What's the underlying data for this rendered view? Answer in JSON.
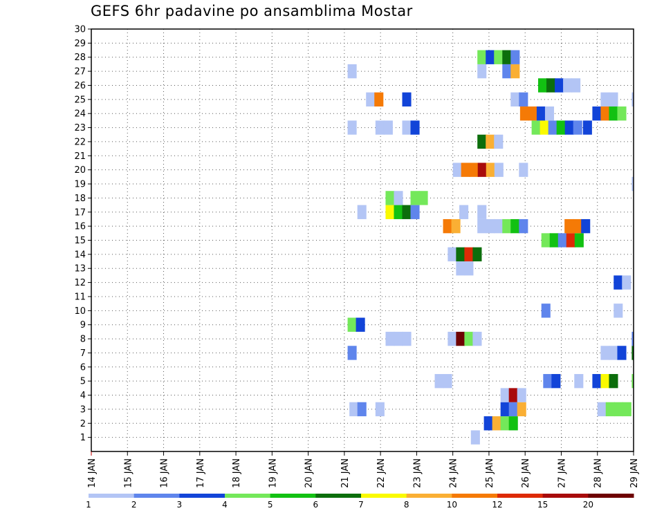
{
  "chart_data": {
    "type": "heatmap",
    "title": "GEFS 6hr padavine po ansamblima Mostar",
    "x_ticks": [
      "14 JAN",
      "15 JAN",
      "16 JAN",
      "17 JAN",
      "18 JAN",
      "19 JAN",
      "20 JAN",
      "21 JAN",
      "22 JAN",
      "23 JAN",
      "24 JAN",
      "25 JAN",
      "26 JAN",
      "27 JAN",
      "28 JAN",
      "29 JAN"
    ],
    "xlim_days": [
      14,
      29
    ],
    "y_ticks": [
      "1",
      "2",
      "3",
      "4",
      "5",
      "6",
      "7",
      "8",
      "9",
      "10",
      "11",
      "12",
      "13",
      "14",
      "15",
      "16",
      "17",
      "18",
      "19",
      "20",
      "21",
      "22",
      "23",
      "24",
      "25",
      "26",
      "27",
      "28",
      "29",
      "30"
    ],
    "ylim": [
      0,
      30
    ],
    "grid": true,
    "colorbar": {
      "labels": [
        "1",
        "2",
        "3",
        "4",
        "5",
        "6",
        "7",
        "8",
        "10",
        "12",
        "15",
        "20"
      ],
      "colors": [
        "#b3c5f5",
        "#5f85ec",
        "#1244d8",
        "#74e85a",
        "#12c112",
        "#0c6e0c",
        "#fafa00",
        "#faaf34",
        "#f57a06",
        "#dd2a06",
        "#a80b0b",
        "#6e0202"
      ]
    },
    "cells": [
      [
        24.5,
        1,
        1
      ],
      [
        24.86,
        2,
        3
      ],
      [
        25.09,
        2,
        8
      ],
      [
        25.32,
        2,
        4
      ],
      [
        25.55,
        2,
        5
      ],
      [
        21.14,
        3,
        1
      ],
      [
        21.36,
        3,
        2
      ],
      [
        21.86,
        3,
        1
      ],
      [
        25.32,
        3,
        3
      ],
      [
        25.55,
        3,
        2
      ],
      [
        25.78,
        3,
        8
      ],
      [
        28.0,
        3,
        1
      ],
      [
        28.23,
        3,
        4
      ],
      [
        28.46,
        3,
        4
      ],
      [
        28.69,
        3,
        4
      ],
      [
        25.32,
        4,
        1
      ],
      [
        25.55,
        4,
        11
      ],
      [
        25.78,
        4,
        1
      ],
      [
        23.5,
        5,
        1
      ],
      [
        23.73,
        5,
        1
      ],
      [
        26.5,
        5,
        2
      ],
      [
        26.73,
        5,
        3
      ],
      [
        27.36,
        5,
        1
      ],
      [
        27.86,
        5,
        3
      ],
      [
        28.09,
        5,
        7
      ],
      [
        28.32,
        5,
        6
      ],
      [
        28.95,
        5,
        4
      ],
      [
        21.09,
        7,
        2
      ],
      [
        28.09,
        7,
        1
      ],
      [
        28.32,
        7,
        1
      ],
      [
        28.55,
        7,
        3
      ],
      [
        28.95,
        7,
        6
      ],
      [
        22.14,
        8,
        1
      ],
      [
        22.37,
        8,
        1
      ],
      [
        22.6,
        8,
        1
      ],
      [
        23.86,
        8,
        1
      ],
      [
        24.09,
        8,
        12
      ],
      [
        24.32,
        8,
        4
      ],
      [
        24.55,
        8,
        1
      ],
      [
        28.95,
        8,
        2
      ],
      [
        21.09,
        9,
        4
      ],
      [
        21.32,
        9,
        3
      ],
      [
        26.45,
        10,
        2
      ],
      [
        28.45,
        10,
        1
      ],
      [
        28.45,
        12,
        3
      ],
      [
        28.68,
        12,
        1
      ],
      [
        24.09,
        13,
        1
      ],
      [
        24.32,
        13,
        1
      ],
      [
        23.86,
        14,
        1
      ],
      [
        24.09,
        14,
        6
      ],
      [
        24.32,
        14,
        10
      ],
      [
        24.55,
        14,
        6
      ],
      [
        26.45,
        15,
        4
      ],
      [
        26.68,
        15,
        5
      ],
      [
        26.91,
        15,
        2
      ],
      [
        27.14,
        15,
        10
      ],
      [
        27.37,
        15,
        5
      ],
      [
        23.73,
        16,
        9
      ],
      [
        23.96,
        16,
        8
      ],
      [
        24.68,
        16,
        1
      ],
      [
        24.91,
        16,
        1
      ],
      [
        25.14,
        16,
        1
      ],
      [
        25.37,
        16,
        4
      ],
      [
        25.6,
        16,
        5
      ],
      [
        25.83,
        16,
        2
      ],
      [
        27.09,
        16,
        9
      ],
      [
        27.32,
        16,
        9
      ],
      [
        27.55,
        16,
        3
      ],
      [
        21.36,
        17,
        1
      ],
      [
        22.14,
        17,
        7
      ],
      [
        22.37,
        17,
        5
      ],
      [
        22.6,
        17,
        6
      ],
      [
        22.83,
        17,
        2
      ],
      [
        24.18,
        17,
        1
      ],
      [
        24.68,
        17,
        1
      ],
      [
        22.14,
        18,
        4
      ],
      [
        22.37,
        18,
        1
      ],
      [
        22.83,
        18,
        4
      ],
      [
        23.06,
        18,
        4
      ],
      [
        28.95,
        19,
        1
      ],
      [
        24.0,
        20,
        1
      ],
      [
        24.23,
        20,
        9
      ],
      [
        24.46,
        20,
        9
      ],
      [
        24.69,
        20,
        11
      ],
      [
        24.92,
        20,
        8
      ],
      [
        25.15,
        20,
        1
      ],
      [
        25.83,
        20,
        1
      ],
      [
        24.68,
        22,
        6
      ],
      [
        24.91,
        22,
        8
      ],
      [
        25.14,
        22,
        1
      ],
      [
        21.09,
        23,
        1
      ],
      [
        21.86,
        23,
        1
      ],
      [
        22.09,
        23,
        1
      ],
      [
        22.6,
        23,
        1
      ],
      [
        22.83,
        23,
        3
      ],
      [
        26.18,
        23,
        4
      ],
      [
        26.41,
        23,
        7
      ],
      [
        26.64,
        23,
        2
      ],
      [
        26.87,
        23,
        5
      ],
      [
        27.1,
        23,
        3
      ],
      [
        27.33,
        23,
        2
      ],
      [
        27.6,
        23,
        3
      ],
      [
        25.86,
        24,
        9
      ],
      [
        26.09,
        24,
        9
      ],
      [
        26.32,
        24,
        3
      ],
      [
        26.55,
        24,
        1
      ],
      [
        27.86,
        24,
        3
      ],
      [
        28.09,
        24,
        9
      ],
      [
        28.32,
        24,
        5
      ],
      [
        28.55,
        24,
        4
      ],
      [
        21.6,
        25,
        1
      ],
      [
        21.83,
        25,
        9
      ],
      [
        22.6,
        25,
        3
      ],
      [
        25.6,
        25,
        1
      ],
      [
        25.83,
        25,
        2
      ],
      [
        28.09,
        25,
        1
      ],
      [
        28.32,
        25,
        1
      ],
      [
        28.95,
        25,
        1
      ],
      [
        26.36,
        26,
        5
      ],
      [
        26.59,
        26,
        6
      ],
      [
        26.82,
        26,
        3
      ],
      [
        27.05,
        26,
        1
      ],
      [
        27.28,
        26,
        1
      ],
      [
        21.09,
        27,
        1
      ],
      [
        24.68,
        27,
        1
      ],
      [
        25.37,
        27,
        2
      ],
      [
        25.6,
        27,
        8
      ],
      [
        24.68,
        28,
        4
      ],
      [
        24.91,
        28,
        3
      ],
      [
        25.14,
        28,
        4
      ],
      [
        25.37,
        28,
        6
      ],
      [
        25.6,
        28,
        2
      ]
    ]
  }
}
